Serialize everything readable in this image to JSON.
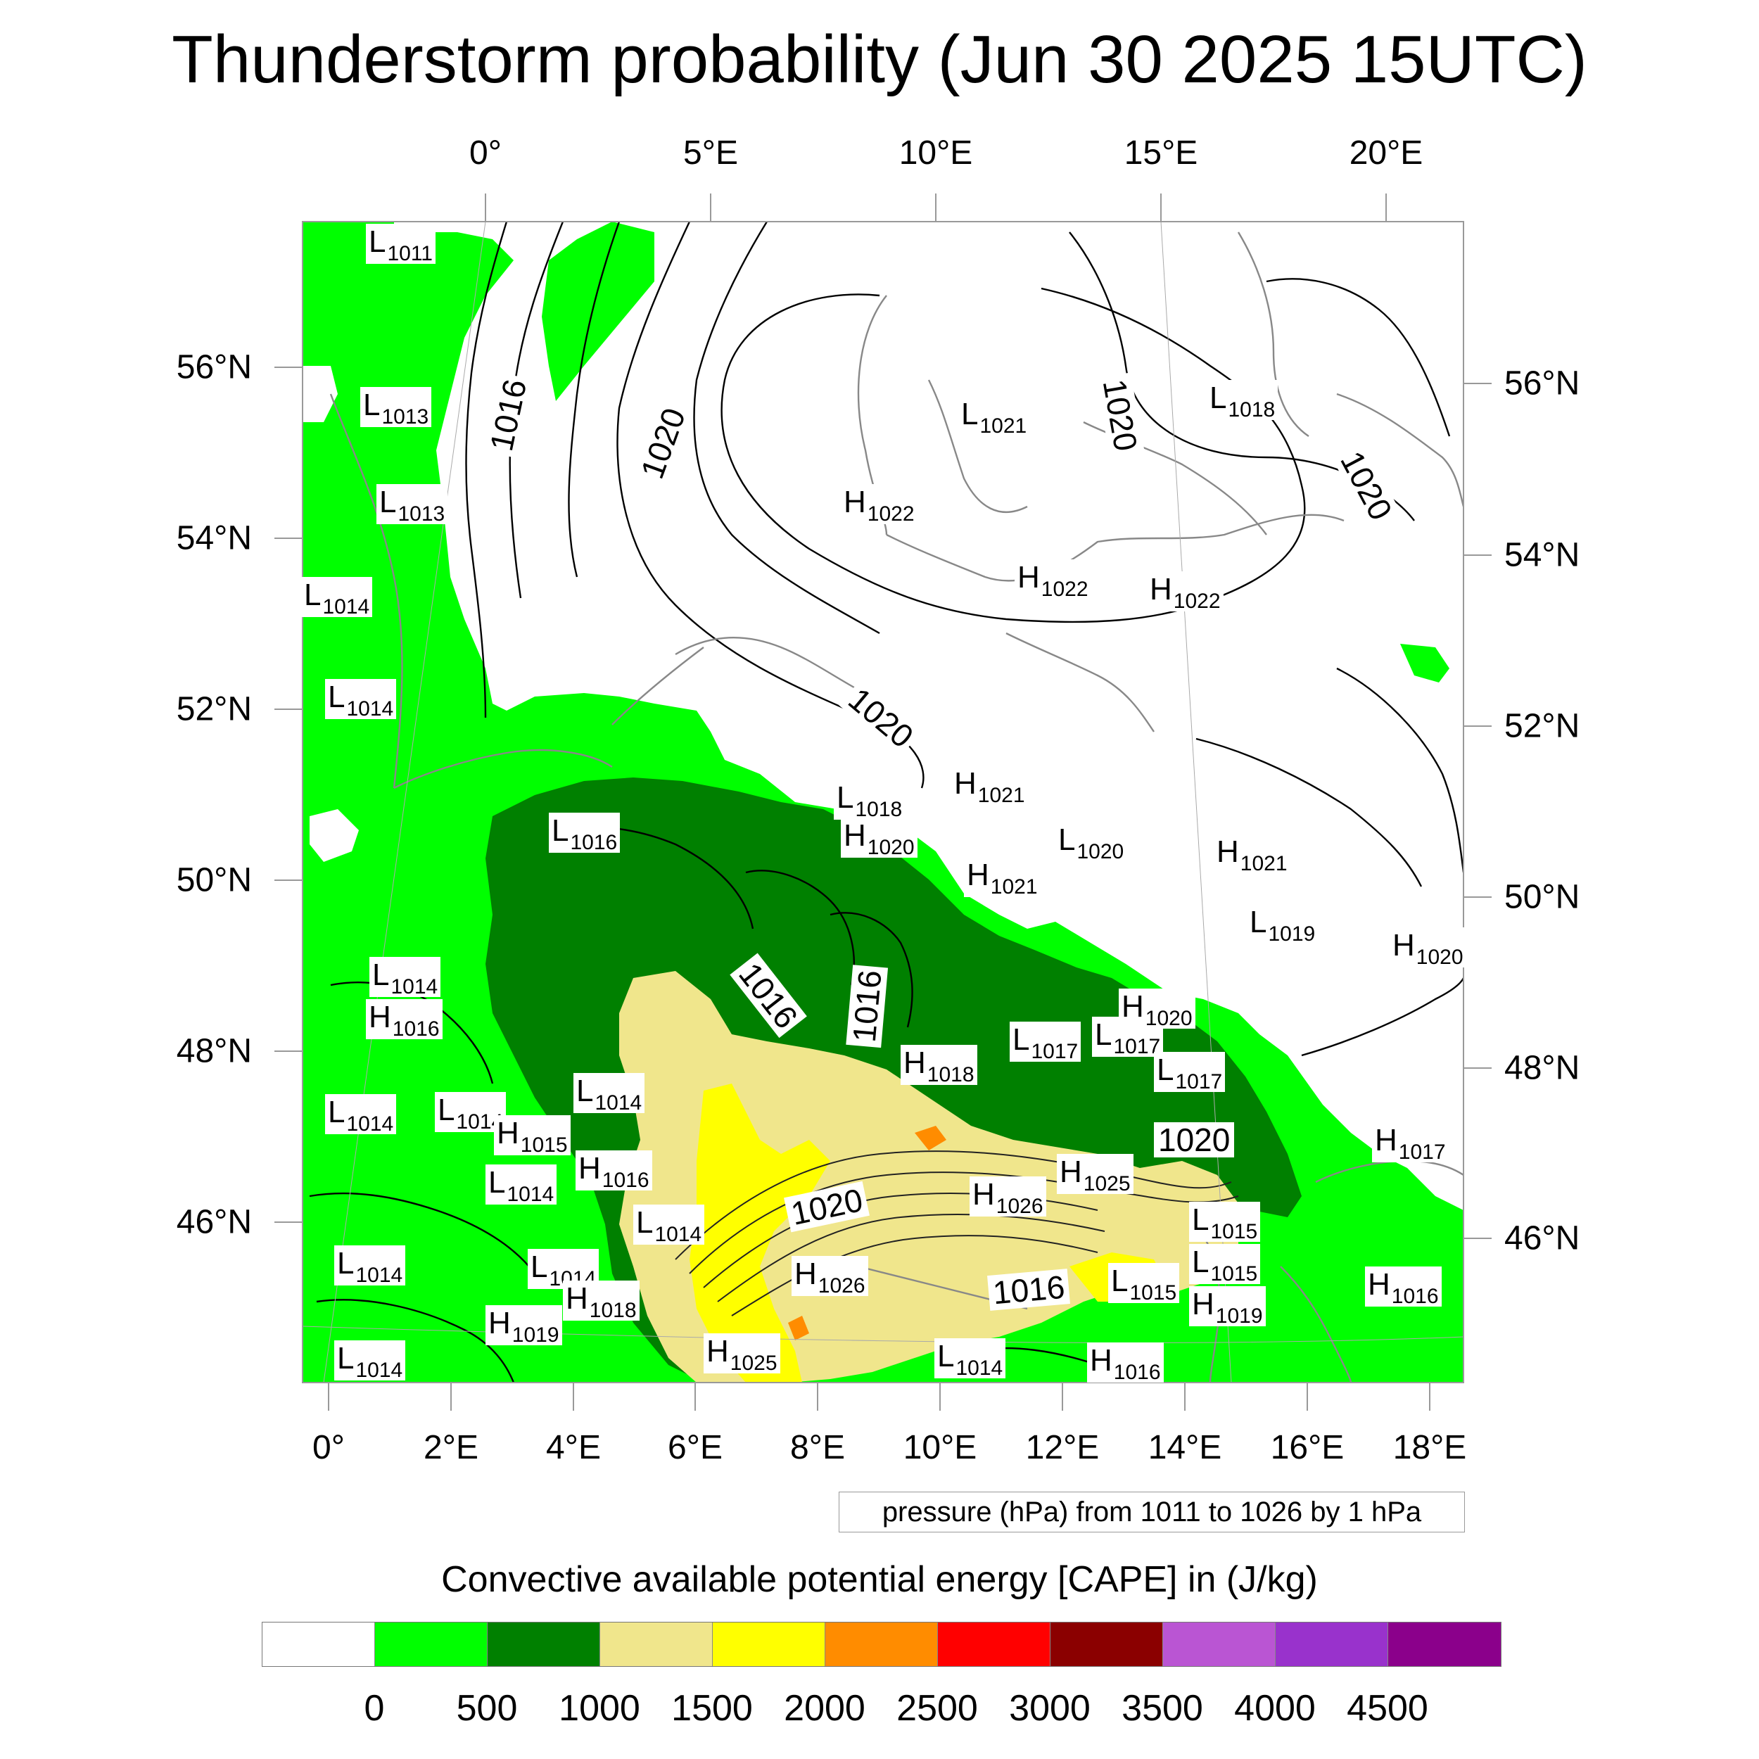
{
  "title": "Thunderstorm probability (Jun 30 2025 15UTC)",
  "top_lon_labels": [
    "0°",
    "5°E",
    "10°E",
    "15°E",
    "20°E"
  ],
  "bottom_lon_labels": [
    "0°",
    "2°E",
    "4°E",
    "6°E",
    "8°E",
    "10°E",
    "12°E",
    "14°E",
    "16°E",
    "18°E"
  ],
  "left_lat_labels": [
    "56°N",
    "54°N",
    "52°N",
    "50°N",
    "48°N",
    "46°N"
  ],
  "right_lat_labels": [
    "56°N",
    "54°N",
    "52°N",
    "50°N",
    "48°N",
    "46°N"
  ],
  "pressure_info": "pressure (hPa) from 1011 to 1026 by 1 hPa",
  "legend": {
    "title": "Convective available potential energy [CAPE] in (J/kg)",
    "colors": [
      "#ffffff",
      "#00ff00",
      "#008000",
      "#f0e68c",
      "#ffff00",
      "#ff8c00",
      "#ff0000",
      "#8b0000",
      "#ba55d3",
      "#9932cc",
      "#8b008b"
    ],
    "labels": [
      "0",
      "500",
      "1000",
      "1500",
      "2000",
      "2500",
      "3000",
      "3500",
      "4000",
      "4500"
    ]
  },
  "contour_labels": [
    {
      "text": "1016"
    },
    {
      "text": "1020"
    },
    {
      "text": "1020"
    },
    {
      "text": "1020"
    },
    {
      "text": "1020"
    },
    {
      "text": "1016"
    },
    {
      "text": "1016"
    },
    {
      "text": "1020"
    },
    {
      "text": "1020"
    },
    {
      "text": "1016"
    }
  ],
  "pressure_centers": [
    {
      "letter": "L",
      "value": "1011"
    },
    {
      "letter": "L",
      "value": "1013"
    },
    {
      "letter": "L",
      "value": "1013"
    },
    {
      "letter": "L",
      "value": "1014"
    },
    {
      "letter": "L",
      "value": "1014"
    },
    {
      "letter": "L",
      "value": "1016"
    },
    {
      "letter": "L",
      "value": "1014"
    },
    {
      "letter": "H",
      "value": "1016"
    },
    {
      "letter": "L",
      "value": "1014"
    },
    {
      "letter": "L",
      "value": "1014"
    },
    {
      "letter": "H",
      "value": "1015"
    },
    {
      "letter": "L",
      "value": "1014"
    },
    {
      "letter": "L",
      "value": "1014"
    },
    {
      "letter": "H",
      "value": "1016"
    },
    {
      "letter": "L",
      "value": "1014"
    },
    {
      "letter": "L",
      "value": "1014"
    },
    {
      "letter": "L",
      "value": "1014"
    },
    {
      "letter": "H",
      "value": "1019"
    },
    {
      "letter": "L",
      "value": "1014"
    },
    {
      "letter": "H",
      "value": "1018"
    },
    {
      "letter": "H",
      "value": "1025"
    },
    {
      "letter": "L",
      "value": "1014"
    },
    {
      "letter": "H",
      "value": "1026"
    },
    {
      "letter": "H",
      "value": "1026"
    },
    {
      "letter": "H",
      "value": "1025"
    },
    {
      "letter": "H",
      "value": "1018"
    },
    {
      "letter": "L",
      "value": "1017"
    },
    {
      "letter": "L",
      "value": "1017"
    },
    {
      "letter": "L",
      "value": "1017"
    },
    {
      "letter": "H",
      "value": "1020"
    },
    {
      "letter": "L",
      "value": "1015"
    },
    {
      "letter": "L",
      "value": "1015"
    },
    {
      "letter": "L",
      "value": "1015"
    },
    {
      "letter": "H",
      "value": "1019"
    },
    {
      "letter": "H",
      "value": "1016"
    },
    {
      "letter": "H",
      "value": "1017"
    },
    {
      "letter": "H",
      "value": "1016"
    },
    {
      "letter": "L",
      "value": "1018"
    },
    {
      "letter": "H",
      "value": "1020"
    },
    {
      "letter": "H",
      "value": "1021"
    },
    {
      "letter": "H",
      "value": "1021"
    },
    {
      "letter": "L",
      "value": "1020"
    },
    {
      "letter": "H",
      "value": "1021"
    },
    {
      "letter": "L",
      "value": "1019"
    },
    {
      "letter": "H",
      "value": "1020"
    },
    {
      "letter": "H",
      "value": "1022"
    },
    {
      "letter": "H",
      "value": "1022"
    },
    {
      "letter": "H",
      "value": "1022"
    },
    {
      "letter": "L",
      "value": "1021"
    },
    {
      "letter": "L",
      "value": "1018"
    }
  ]
}
